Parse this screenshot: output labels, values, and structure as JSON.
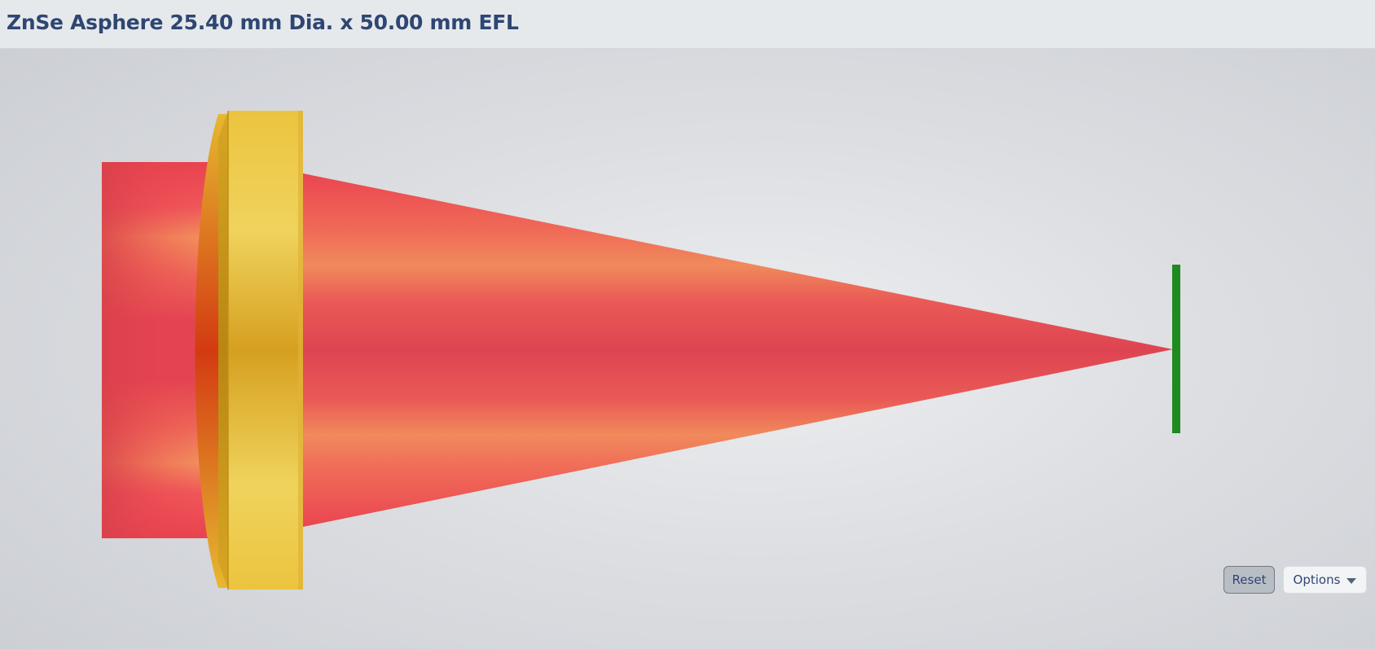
{
  "header": {
    "title": "ZnSe Asphere 25.40 mm Dia. x 50.00 mm EFL"
  },
  "controls": {
    "reset_label": "Reset",
    "options_label": "Options",
    "options_icon": "chevron-down-icon"
  },
  "scene": {
    "beam_color": "#e8434f",
    "beam_highlight_color": "#f2a05a",
    "lens_color": "#e8bf3c",
    "lens_shadow_color": "#c9951a",
    "detector_color": "#1f8a1f",
    "background_color": "#dcdee2"
  }
}
